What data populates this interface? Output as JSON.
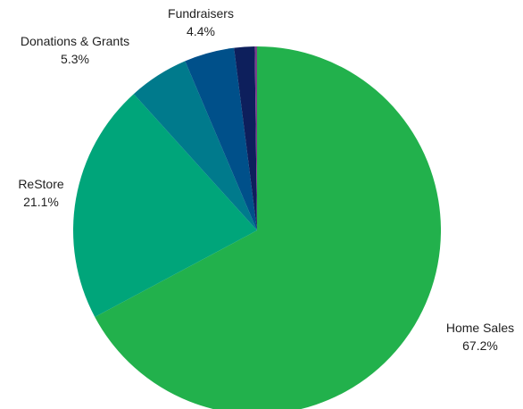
{
  "chart_data": {
    "type": "pie",
    "title": "",
    "start_angle_deg": 0,
    "direction": "clockwise",
    "slices": [
      {
        "label": "Home Sales",
        "value": 67.2,
        "display": "67.2%",
        "color": "#22b14c",
        "show_label": true
      },
      {
        "label": "ReStore",
        "value": 21.1,
        "display": "21.1%",
        "color": "#00a57a",
        "show_label": true
      },
      {
        "label": "Donations & Grants",
        "value": 5.3,
        "display": "5.3%",
        "color": "#007a8c",
        "show_label": true
      },
      {
        "label": "Fundraisers",
        "value": 4.4,
        "display": "4.4%",
        "color": "#00508a",
        "show_label": true
      },
      {
        "label": "",
        "value": 1.8,
        "display": "",
        "color": "#0d1f5c",
        "show_label": false
      },
      {
        "label": "",
        "value": 0.2,
        "display": "",
        "color": "#7a3f8c",
        "show_label": false
      }
    ]
  }
}
